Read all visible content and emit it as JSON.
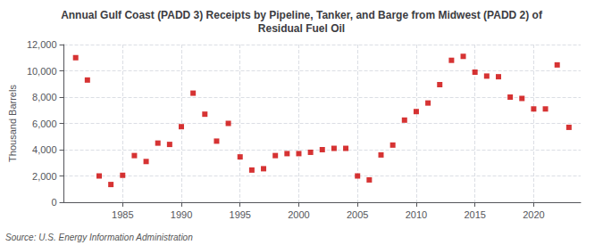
{
  "chart_data": {
    "type": "scatter",
    "title": "Annual Gulf Coast (PADD 3) Receipts by Pipeline, Tanker, and Barge from Midwest (PADD 2) of\nResidual Fuel Oil",
    "y_label": "Thousand Barrels",
    "source": "Source: U.S. Energy Information Administration",
    "x": [
      1981,
      1982,
      1983,
      1984,
      1985,
      1986,
      1987,
      1988,
      1989,
      1990,
      1991,
      1992,
      1993,
      1994,
      1995,
      1996,
      1997,
      1998,
      1999,
      2000,
      2001,
      2002,
      2003,
      2004,
      2005,
      2006,
      2007,
      2008,
      2009,
      2010,
      2011,
      2012,
      2013,
      2014,
      2015,
      2016,
      2017,
      2018,
      2019,
      2020,
      2021,
      2022,
      2023
    ],
    "values": [
      11000,
      9300,
      2000,
      1350,
      2050,
      3550,
      3100,
      4500,
      4400,
      5750,
      8300,
      6700,
      4650,
      6000,
      3450,
      2450,
      2550,
      3550,
      3700,
      3700,
      3800,
      4000,
      4100,
      4100,
      2000,
      1700,
      3600,
      4350,
      6250,
      6900,
      7550,
      8950,
      10800,
      11100,
      9900,
      9600,
      9550,
      8000,
      7900,
      7100,
      7100,
      10450,
      5700
    ],
    "color": "#cc0000",
    "marker": "square",
    "xlim": [
      1980,
      2024
    ],
    "xticks": [
      1985,
      1990,
      1995,
      2000,
      2005,
      2010,
      2015,
      2020
    ],
    "ylim": [
      0,
      12000
    ],
    "yticks": [
      0,
      {
        "value": 2000,
        "label": "2,000"
      },
      {
        "value": 4000,
        "label": "4,000"
      },
      {
        "value": 6000,
        "label": "6,000"
      },
      {
        "value": 8000,
        "label": "8,000"
      },
      {
        "value": 10000,
        "label": "10,000"
      },
      {
        "value": 12000,
        "label": "12,000"
      }
    ],
    "grid": true
  }
}
